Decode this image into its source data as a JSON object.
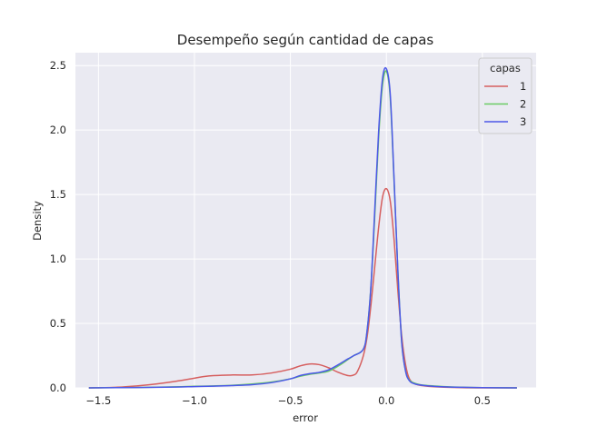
{
  "chart_data": {
    "type": "line",
    "title": "Desempeño según cantidad de capas",
    "xlabel": "error",
    "ylabel": "Density",
    "xlim": [
      -1.62,
      0.78
    ],
    "ylim": [
      0,
      2.6
    ],
    "xticks": [
      -1.5,
      -1.0,
      -0.5,
      0.0,
      0.5
    ],
    "xtick_labels": [
      "−1.5",
      "−1.0",
      "−0.5",
      "0.0",
      "0.5"
    ],
    "yticks": [
      0.0,
      0.5,
      1.0,
      1.5,
      2.0,
      2.5
    ],
    "ytick_labels": [
      "0.0",
      "0.5",
      "1.0",
      "1.5",
      "2.0",
      "2.5"
    ],
    "grid": true,
    "background": "#eaeaf2",
    "legend": {
      "title": "capas",
      "placement": "top-right"
    },
    "series": [
      {
        "name": "1",
        "color": "#d65f5f",
        "points": [
          [
            -1.55,
            0.0
          ],
          [
            -1.4,
            0.005
          ],
          [
            -1.3,
            0.015
          ],
          [
            -1.2,
            0.03
          ],
          [
            -1.1,
            0.05
          ],
          [
            -1.0,
            0.075
          ],
          [
            -0.95,
            0.088
          ],
          [
            -0.9,
            0.095
          ],
          [
            -0.8,
            0.1
          ],
          [
            -0.7,
            0.1
          ],
          [
            -0.6,
            0.115
          ],
          [
            -0.5,
            0.145
          ],
          [
            -0.45,
            0.17
          ],
          [
            -0.4,
            0.185
          ],
          [
            -0.35,
            0.18
          ],
          [
            -0.3,
            0.155
          ],
          [
            -0.25,
            0.12
          ],
          [
            -0.2,
            0.095
          ],
          [
            -0.17,
            0.1
          ],
          [
            -0.15,
            0.13
          ],
          [
            -0.12,
            0.25
          ],
          [
            -0.1,
            0.4
          ],
          [
            -0.08,
            0.65
          ],
          [
            -0.06,
            0.95
          ],
          [
            -0.04,
            1.25
          ],
          [
            -0.02,
            1.48
          ],
          [
            0.0,
            1.545
          ],
          [
            0.02,
            1.45
          ],
          [
            0.04,
            1.15
          ],
          [
            0.06,
            0.75
          ],
          [
            0.08,
            0.4
          ],
          [
            0.1,
            0.18
          ],
          [
            0.12,
            0.07
          ],
          [
            0.15,
            0.03
          ],
          [
            0.2,
            0.015
          ],
          [
            0.3,
            0.005
          ],
          [
            0.5,
            0.0
          ],
          [
            0.68,
            0.0
          ]
        ]
      },
      {
        "name": "2",
        "color": "#6acc64",
        "points": [
          [
            -1.55,
            0.0
          ],
          [
            -1.3,
            0.003
          ],
          [
            -1.1,
            0.008
          ],
          [
            -1.0,
            0.012
          ],
          [
            -0.9,
            0.015
          ],
          [
            -0.8,
            0.02
          ],
          [
            -0.7,
            0.03
          ],
          [
            -0.6,
            0.045
          ],
          [
            -0.5,
            0.07
          ],
          [
            -0.45,
            0.09
          ],
          [
            -0.4,
            0.105
          ],
          [
            -0.35,
            0.115
          ],
          [
            -0.3,
            0.13
          ],
          [
            -0.25,
            0.17
          ],
          [
            -0.2,
            0.22
          ],
          [
            -0.17,
            0.25
          ],
          [
            -0.12,
            0.3
          ],
          [
            -0.1,
            0.45
          ],
          [
            -0.08,
            0.8
          ],
          [
            -0.06,
            1.35
          ],
          [
            -0.04,
            1.95
          ],
          [
            -0.02,
            2.35
          ],
          [
            0.0,
            2.455
          ],
          [
            0.02,
            2.25
          ],
          [
            0.04,
            1.6
          ],
          [
            0.06,
            0.9
          ],
          [
            0.08,
            0.35
          ],
          [
            0.1,
            0.13
          ],
          [
            0.12,
            0.06
          ],
          [
            0.15,
            0.035
          ],
          [
            0.2,
            0.02
          ],
          [
            0.3,
            0.01
          ],
          [
            0.4,
            0.005
          ],
          [
            0.5,
            0.002
          ],
          [
            0.68,
            0.0
          ]
        ]
      },
      {
        "name": "3",
        "color": "#4c58e8",
        "points": [
          [
            -1.55,
            0.0
          ],
          [
            -1.3,
            0.003
          ],
          [
            -1.1,
            0.006
          ],
          [
            -1.0,
            0.01
          ],
          [
            -0.9,
            0.013
          ],
          [
            -0.8,
            0.018
          ],
          [
            -0.7,
            0.025
          ],
          [
            -0.6,
            0.04
          ],
          [
            -0.5,
            0.07
          ],
          [
            -0.45,
            0.095
          ],
          [
            -0.4,
            0.11
          ],
          [
            -0.35,
            0.12
          ],
          [
            -0.3,
            0.14
          ],
          [
            -0.25,
            0.18
          ],
          [
            -0.2,
            0.225
          ],
          [
            -0.17,
            0.25
          ],
          [
            -0.12,
            0.3
          ],
          [
            -0.1,
            0.45
          ],
          [
            -0.08,
            0.8
          ],
          [
            -0.06,
            1.4
          ],
          [
            -0.04,
            2.0
          ],
          [
            -0.02,
            2.4
          ],
          [
            0.0,
            2.475
          ],
          [
            0.02,
            2.28
          ],
          [
            0.04,
            1.62
          ],
          [
            0.06,
            0.9
          ],
          [
            0.08,
            0.35
          ],
          [
            0.1,
            0.13
          ],
          [
            0.12,
            0.055
          ],
          [
            0.15,
            0.03
          ],
          [
            0.2,
            0.018
          ],
          [
            0.3,
            0.008
          ],
          [
            0.4,
            0.004
          ],
          [
            0.5,
            0.002
          ],
          [
            0.68,
            0.0
          ]
        ]
      }
    ]
  }
}
